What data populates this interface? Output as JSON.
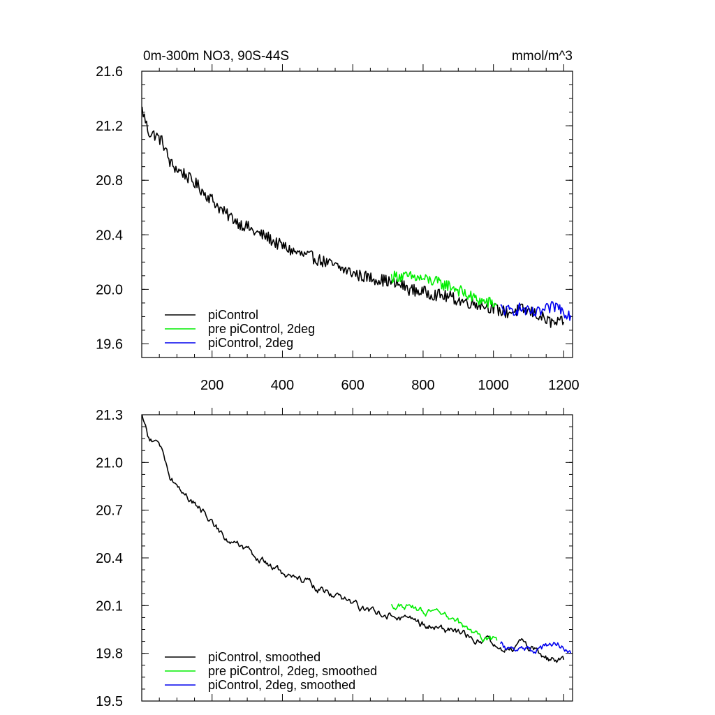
{
  "chart_data": [
    {
      "type": "line",
      "id": "top",
      "title": "0m-300m NO3, 90S-44S",
      "units": "mmol/m^3",
      "xlim": [
        0,
        1225
      ],
      "ylim": [
        19.5,
        21.6
      ],
      "xticks": [
        200,
        400,
        600,
        800,
        1000,
        1200
      ],
      "xtick_labels": [
        "200",
        "400",
        "600",
        "800",
        "1000",
        "1200"
      ],
      "yticks": [
        19.6,
        20.0,
        20.4,
        20.8,
        21.2,
        21.6
      ],
      "ytick_labels": [
        "19.6",
        "20.0",
        "20.4",
        "20.8",
        "21.2",
        "21.6"
      ],
      "grid": false,
      "legend_position": "bottom-left",
      "series": [
        {
          "name": "piControl",
          "color": "#000000",
          "x": [
            1,
            20,
            40,
            60,
            80,
            100,
            120,
            140,
            160,
            180,
            200,
            220,
            240,
            260,
            280,
            300,
            320,
            340,
            360,
            380,
            400,
            420,
            440,
            460,
            480,
            500,
            520,
            540,
            560,
            580,
            600,
            620,
            640,
            660,
            680,
            700,
            720,
            740,
            760,
            780,
            800,
            820,
            840,
            860,
            880,
            900,
            920,
            940,
            960,
            980,
            1000,
            1020,
            1040,
            1060,
            1080,
            1100,
            1120,
            1140,
            1160,
            1180,
            1200
          ],
          "y": [
            21.32,
            21.15,
            21.13,
            21.08,
            20.93,
            20.88,
            20.85,
            20.8,
            20.76,
            20.7,
            20.66,
            20.6,
            20.55,
            20.52,
            20.48,
            20.46,
            20.42,
            20.4,
            20.38,
            20.34,
            20.32,
            20.29,
            20.27,
            20.25,
            20.24,
            20.22,
            20.2,
            20.18,
            20.16,
            20.14,
            20.12,
            20.1,
            20.09,
            20.08,
            20.07,
            20.06,
            20.04,
            20.03,
            20.0,
            19.99,
            19.98,
            19.97,
            19.96,
            19.95,
            19.94,
            19.92,
            19.91,
            19.9,
            19.89,
            19.88,
            19.86,
            19.84,
            19.83,
            19.84,
            19.85,
            19.84,
            19.82,
            19.79,
            19.76,
            19.75,
            19.76
          ]
        },
        {
          "name": "pre piControl, 2deg",
          "color": "#00ee00",
          "x": [
            710,
            730,
            750,
            770,
            790,
            810,
            830,
            850,
            870,
            890,
            910,
            930,
            950,
            970,
            990,
            1010
          ],
          "y": [
            20.09,
            20.1,
            20.09,
            20.09,
            20.08,
            20.07,
            20.06,
            20.04,
            20.03,
            20.01,
            19.98,
            19.95,
            19.93,
            19.91,
            19.9,
            19.89
          ]
        },
        {
          "name": "piControl, 2deg",
          "color": "#0000ee",
          "x": [
            1020,
            1040,
            1060,
            1080,
            1100,
            1120,
            1140,
            1160,
            1180,
            1200,
            1220
          ],
          "y": [
            19.86,
            19.84,
            19.85,
            19.86,
            19.83,
            19.82,
            19.84,
            19.86,
            19.88,
            19.84,
            19.81
          ]
        }
      ]
    },
    {
      "type": "line",
      "id": "bottom",
      "xlim": [
        0,
        1225
      ],
      "ylim": [
        19.5,
        21.3
      ],
      "yticks": [
        19.5,
        19.8,
        20.1,
        20.4,
        20.7,
        21.0,
        21.3
      ],
      "ytick_labels": [
        "19.5",
        "19.8",
        "20.1",
        "20.4",
        "20.7",
        "21.0",
        "21.3"
      ],
      "xticks": [
        200,
        400,
        600,
        800,
        1000,
        1200
      ],
      "grid": false,
      "legend_position": "bottom-left",
      "series": [
        {
          "name": "piControl, smoothed",
          "color": "#000000",
          "x": [
            1,
            20,
            40,
            60,
            80,
            100,
            120,
            140,
            160,
            180,
            200,
            220,
            240,
            260,
            280,
            300,
            320,
            340,
            360,
            380,
            400,
            420,
            440,
            460,
            480,
            500,
            520,
            540,
            560,
            580,
            600,
            620,
            640,
            660,
            680,
            700,
            720,
            740,
            760,
            780,
            800,
            820,
            840,
            860,
            880,
            900,
            920,
            940,
            960,
            980,
            1000,
            1020,
            1040,
            1060,
            1080,
            1100,
            1120,
            1140,
            1160,
            1180,
            1200
          ],
          "y": [
            21.29,
            21.15,
            21.12,
            21.07,
            20.92,
            20.86,
            20.81,
            20.77,
            20.72,
            20.67,
            20.63,
            20.57,
            20.53,
            20.5,
            20.47,
            20.44,
            20.41,
            20.38,
            20.36,
            20.33,
            20.3,
            20.28,
            20.26,
            20.25,
            20.23,
            20.21,
            20.19,
            20.17,
            20.15,
            20.13,
            20.11,
            20.09,
            20.08,
            20.07,
            20.06,
            20.05,
            20.03,
            20.02,
            20.0,
            19.99,
            19.98,
            19.97,
            19.96,
            19.95,
            19.94,
            19.92,
            19.91,
            19.9,
            19.89,
            19.88,
            19.86,
            19.84,
            19.83,
            19.84,
            19.85,
            19.84,
            19.82,
            19.79,
            19.76,
            19.75,
            19.76
          ]
        },
        {
          "name": "pre piControl, 2deg, smoothed",
          "color": "#00ee00",
          "x": [
            710,
            730,
            750,
            770,
            790,
            810,
            830,
            850,
            870,
            890,
            910,
            930,
            950,
            970,
            990,
            1010
          ],
          "y": [
            20.1,
            20.1,
            20.09,
            20.08,
            20.07,
            20.06,
            20.05,
            20.03,
            20.02,
            20.0,
            19.97,
            19.94,
            19.92,
            19.9,
            19.89,
            19.88
          ]
        },
        {
          "name": "piControl, 2deg, smoothed",
          "color": "#0000ee",
          "x": [
            1020,
            1040,
            1060,
            1080,
            1100,
            1120,
            1140,
            1160,
            1180,
            1200,
            1220
          ],
          "y": [
            19.85,
            19.83,
            19.84,
            19.85,
            19.82,
            19.81,
            19.83,
            19.85,
            19.87,
            19.83,
            19.8
          ]
        }
      ]
    }
  ]
}
